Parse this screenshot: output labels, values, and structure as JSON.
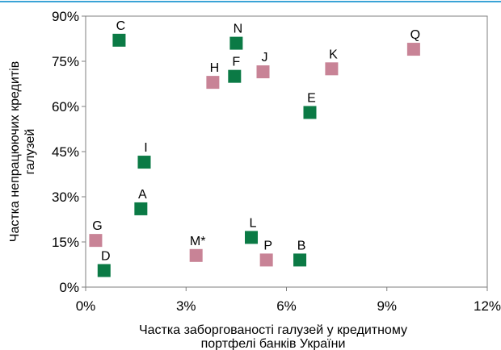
{
  "chart_data": {
    "type": "scatter",
    "title": "",
    "xlabel": [
      "Частка заборгованості галузей у кредитному",
      "портфелі банків України"
    ],
    "ylabel": [
      "Частка непрацюючих кредитів",
      "галузей"
    ],
    "xlim": [
      0,
      12
    ],
    "ylim": [
      0,
      90
    ],
    "x_ticks": [
      0,
      3,
      6,
      9,
      12
    ],
    "y_ticks": [
      0,
      15,
      30,
      45,
      60,
      75,
      90
    ],
    "x_tick_labels": [
      "0%",
      "3%",
      "6%",
      "9%",
      "12%"
    ],
    "y_tick_labels": [
      "0%",
      "15%",
      "30%",
      "45%",
      "60%",
      "75%",
      "90%"
    ],
    "grid": false,
    "colors": {
      "green": "#0b7a45",
      "pink": "#c88396",
      "frame": "#7f7f7f",
      "accent_line": "#3aa3d6"
    },
    "points": [
      {
        "label": "C",
        "x": 1.0,
        "y": 82,
        "color": "green"
      },
      {
        "label": "N",
        "x": 4.5,
        "y": 81,
        "color": "green"
      },
      {
        "label": "Q",
        "x": 9.8,
        "y": 79,
        "color": "pink"
      },
      {
        "label": "K",
        "x": 7.35,
        "y": 72.5,
        "color": "pink"
      },
      {
        "label": "J",
        "x": 5.3,
        "y": 71.5,
        "color": "pink"
      },
      {
        "label": "F",
        "x": 4.45,
        "y": 70,
        "color": "green"
      },
      {
        "label": "H",
        "x": 3.8,
        "y": 68,
        "color": "pink"
      },
      {
        "label": "E",
        "x": 6.7,
        "y": 58,
        "color": "green"
      },
      {
        "label": "I",
        "x": 1.75,
        "y": 41.5,
        "color": "green"
      },
      {
        "label": "A",
        "x": 1.65,
        "y": 26,
        "color": "green"
      },
      {
        "label": "L",
        "x": 4.95,
        "y": 16.5,
        "color": "green"
      },
      {
        "label": "G",
        "x": 0.3,
        "y": 15.5,
        "color": "pink"
      },
      {
        "label": "M*",
        "x": 3.3,
        "y": 10.5,
        "color": "pink"
      },
      {
        "label": "P",
        "x": 5.4,
        "y": 9,
        "color": "pink"
      },
      {
        "label": "B",
        "x": 6.4,
        "y": 9,
        "color": "green"
      },
      {
        "label": "D",
        "x": 0.55,
        "y": 5.5,
        "color": "green"
      }
    ]
  }
}
